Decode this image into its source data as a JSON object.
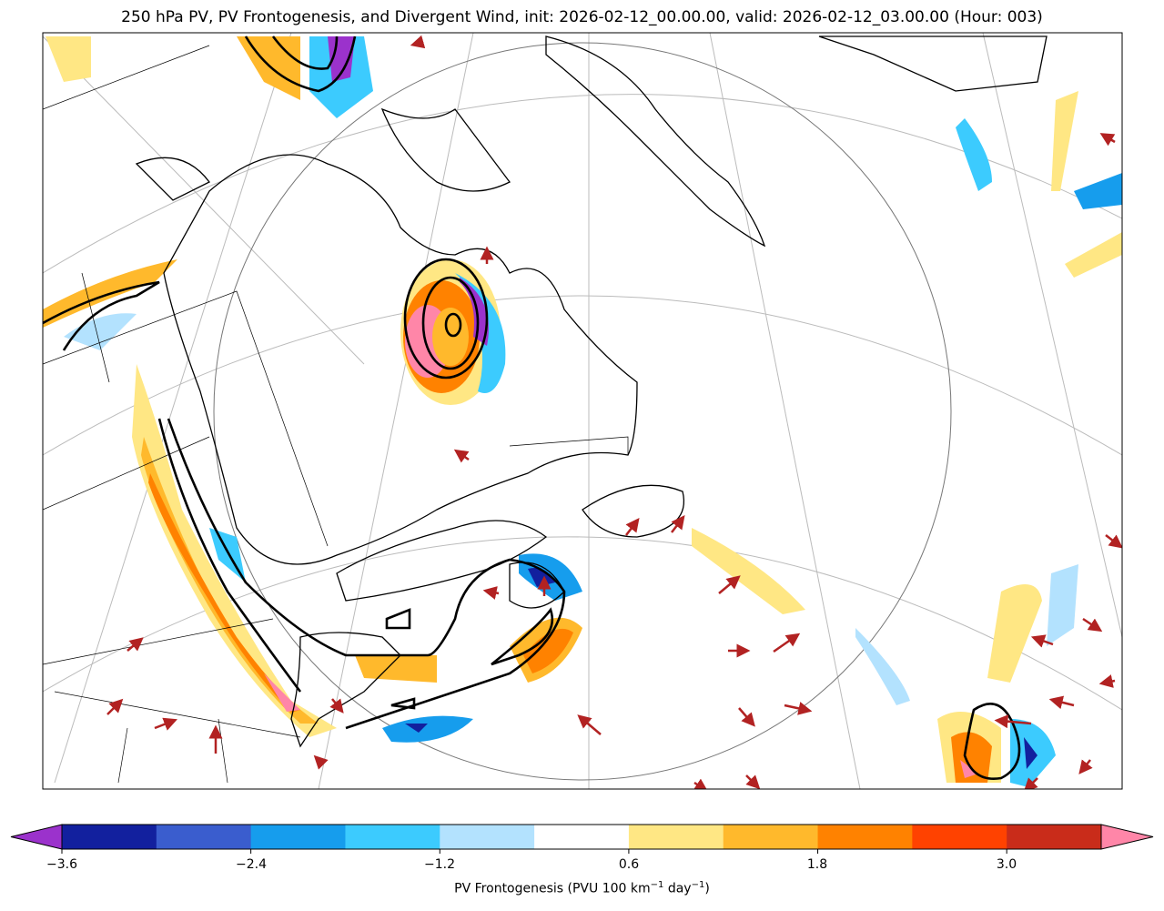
{
  "title": "250 hPa PV, PV Frontogenesis, and Divergent Wind, init: 2026-02-12_00.00.00, valid: 2026-02-12_03.00.00 (Hour: 003)",
  "colorbar": {
    "label_main": "PV Frontogenesis (PVU 100 km",
    "label_sup1": "−1",
    "label_mid": " day",
    "label_sup2": "−1",
    "label_end": ")",
    "ticks": [
      "−3.6",
      "−2.4",
      "−1.2",
      "0.6",
      "1.8",
      "3.0"
    ],
    "levels": [
      -3.6,
      -3.0,
      -2.4,
      -1.8,
      -1.2,
      -0.6,
      0.6,
      1.2,
      1.8,
      2.4,
      3.0,
      3.6
    ],
    "colors": [
      "#12209e",
      "#3a5dce",
      "#169ded",
      "#3ccbfe",
      "#b3e2fe",
      "#ffffff",
      "#ffe784",
      "#ffb92c",
      "#ff8200",
      "#ff4200",
      "#c92c1a"
    ],
    "under_color": "#9b32cc",
    "over_color": "#ff86a8"
  },
  "colors": {
    "wind_arrow": "#b22222",
    "pv_contour": "#000000"
  }
}
